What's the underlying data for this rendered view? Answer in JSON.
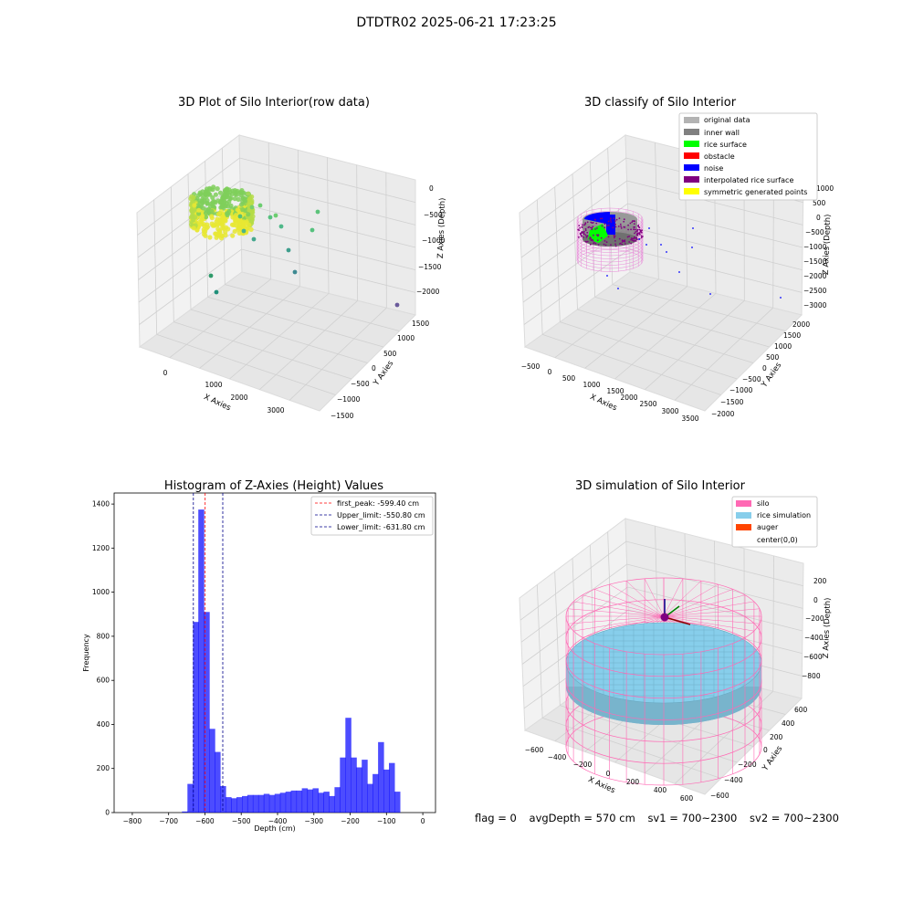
{
  "suptitle": "DTDTR02 2025-06-21 17:23:25",
  "status": {
    "flag": "flag = 0",
    "avg_depth": "avgDepth = 570 cm",
    "sv1": "sv1 = 700~2300",
    "sv2": "sv2 = 700~2300"
  },
  "colors": {
    "original": "#b3b3b3",
    "inner_wall": "#808080",
    "rice_surface": "#00ff00",
    "obstacle": "#ff0000",
    "noise": "#0000ff",
    "interpolated": "#800080",
    "symmetric": "#ffff00",
    "silo": "#ff69b4",
    "rice_sim": "#87ceeb",
    "auger": "#ff4500",
    "hist_bar": "#0000ff",
    "peak_line": "#ff0000",
    "limit_line": "#00008b"
  },
  "chart_data": [
    {
      "type": "scatter",
      "title": "3D Plot of Silo Interior(row data)",
      "xlabel": "X Axies",
      "ylabel": "Y Axies",
      "zlabel": "Z Axies (Depth)",
      "x_ticks": [
        "0",
        "1000",
        "2000",
        "3000"
      ],
      "y_ticks": [
        "−1500",
        "−1000",
        "−500",
        "0",
        "500",
        "1000",
        "1500"
      ],
      "z_ticks": [
        "−2000",
        "−1500",
        "−1000",
        "−500",
        "0"
      ],
      "xlim": [
        -500,
        3600
      ],
      "ylim": [
        -1500,
        1600
      ],
      "zlim": [
        -2300,
        100
      ]
    },
    {
      "type": "scatter",
      "title": "3D classify of Silo Interior",
      "xlabel": "X Axies",
      "ylabel": "Y Axies",
      "zlabel": "Z Axies (Depth)",
      "x_ticks": [
        "−500",
        "0",
        "500",
        "1000",
        "1500",
        "2000",
        "2500",
        "3000",
        "3500"
      ],
      "y_ticks": [
        "−2000",
        "−1500",
        "−1000",
        "−500",
        "0",
        "500",
        "1000",
        "1500",
        "2000"
      ],
      "z_ticks": [
        "−3000",
        "−2500",
        "−2000",
        "−1500",
        "−1000",
        "−500",
        "0",
        "500",
        "1000"
      ],
      "legend": [
        "original data",
        "inner wall",
        "rice surface",
        "obstacle",
        "noise",
        "interpolated rice surface",
        "symmetric generated points"
      ],
      "legend_position": "top-right"
    },
    {
      "type": "bar",
      "title": "Histogram of Z-Axies (Height) Values",
      "xlabel": "Depth (cm)",
      "ylabel": "Frequency",
      "xlim": [
        -850,
        35
      ],
      "ylim": [
        0,
        1450
      ],
      "x_ticks": [
        -800,
        -700,
        -600,
        -500,
        -400,
        -300,
        -200,
        -100,
        0
      ],
      "y_ticks": [
        0,
        200,
        400,
        600,
        800,
        1000,
        1200,
        1400
      ],
      "bin_width": 16.25,
      "bins": [
        [
          -640,
          130
        ],
        [
          -625,
          865
        ],
        [
          -610,
          1375
        ],
        [
          -595,
          910
        ],
        [
          -580,
          380
        ],
        [
          -565,
          275
        ],
        [
          -550,
          120
        ],
        [
          -535,
          70
        ],
        [
          -520,
          65
        ],
        [
          -505,
          70
        ],
        [
          -490,
          75
        ],
        [
          -475,
          80
        ],
        [
          -460,
          80
        ],
        [
          -445,
          80
        ],
        [
          -430,
          85
        ],
        [
          -415,
          80
        ],
        [
          -400,
          85
        ],
        [
          -385,
          90
        ],
        [
          -370,
          95
        ],
        [
          -355,
          100
        ],
        [
          -340,
          100
        ],
        [
          -325,
          110
        ],
        [
          -310,
          105
        ],
        [
          -295,
          110
        ],
        [
          -280,
          90
        ],
        [
          -265,
          95
        ],
        [
          -250,
          75
        ],
        [
          -235,
          115
        ],
        [
          -220,
          250
        ],
        [
          -205,
          430
        ],
        [
          -190,
          250
        ],
        [
          -175,
          205
        ],
        [
          -160,
          240
        ],
        [
          -145,
          130
        ],
        [
          -130,
          175
        ],
        [
          -115,
          320
        ],
        [
          -100,
          195
        ],
        [
          -85,
          225
        ],
        [
          -70,
          95
        ],
        [
          -655,
          5
        ]
      ],
      "vlines": [
        {
          "name": "first_peak: -599.40 cm",
          "x": -599.4,
          "style": "peak"
        },
        {
          "name": "Upper_limit: -550.80 cm",
          "x": -550.8,
          "style": "limit"
        },
        {
          "name": "Lower_limit: -631.80 cm",
          "x": -631.8,
          "style": "limit"
        }
      ],
      "legend_position": "top-right"
    },
    {
      "type": "scatter",
      "title": "3D simulation of Silo Interior",
      "xlabel": "X Axies",
      "ylabel": "Y Axies",
      "zlabel": "Z Axies (Depth)",
      "x_ticks": [
        "−600",
        "−400",
        "−200",
        "0",
        "200",
        "400",
        "600"
      ],
      "y_ticks": [
        "−600",
        "−400",
        "−200",
        "0",
        "200",
        "400",
        "600"
      ],
      "z_ticks": [
        "−800",
        "−600",
        "−400",
        "−200",
        "0",
        "200"
      ],
      "legend": [
        "silo",
        "rice simulation",
        "auger",
        "center(0,0)"
      ],
      "legend_position": "top-right"
    }
  ]
}
